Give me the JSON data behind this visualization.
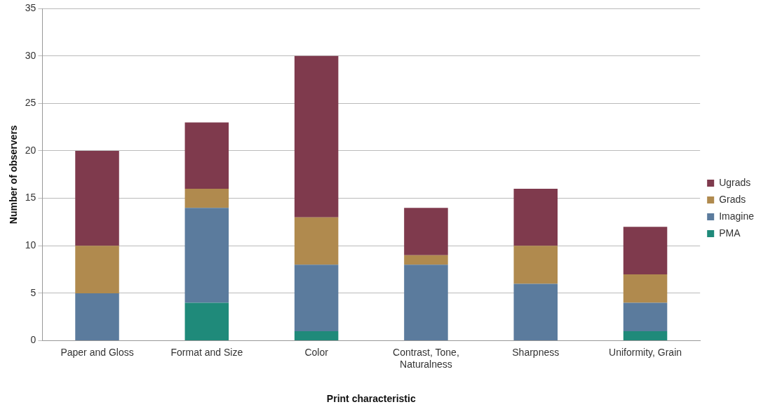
{
  "chart_data": {
    "type": "bar",
    "stacked": true,
    "xlabel": "Print characteristic",
    "ylabel": "Number of observers",
    "categories": [
      "Paper and Gloss",
      "Format and Size",
      "Color",
      "Contrast, Tone, Naturalness",
      "Sharpness",
      "Uniformity, Grain"
    ],
    "series": [
      {
        "name": "PMA",
        "color": "#1f8a7a",
        "values": [
          0,
          4,
          1,
          0,
          0,
          1
        ]
      },
      {
        "name": "Imagine",
        "color": "#5b7b9d",
        "values": [
          5,
          10,
          7,
          8,
          6,
          3
        ]
      },
      {
        "name": "Grads",
        "color": "#b08a4e",
        "values": [
          5,
          2,
          5,
          1,
          4,
          3
        ]
      },
      {
        "name": "Ugrads",
        "color": "#7f3a4d",
        "values": [
          10,
          7,
          17,
          5,
          6,
          5
        ]
      }
    ],
    "ylim": [
      0,
      35
    ],
    "yticks": [
      0,
      5,
      10,
      15,
      20,
      25,
      30,
      35
    ],
    "grid": "y",
    "legend": "right"
  }
}
